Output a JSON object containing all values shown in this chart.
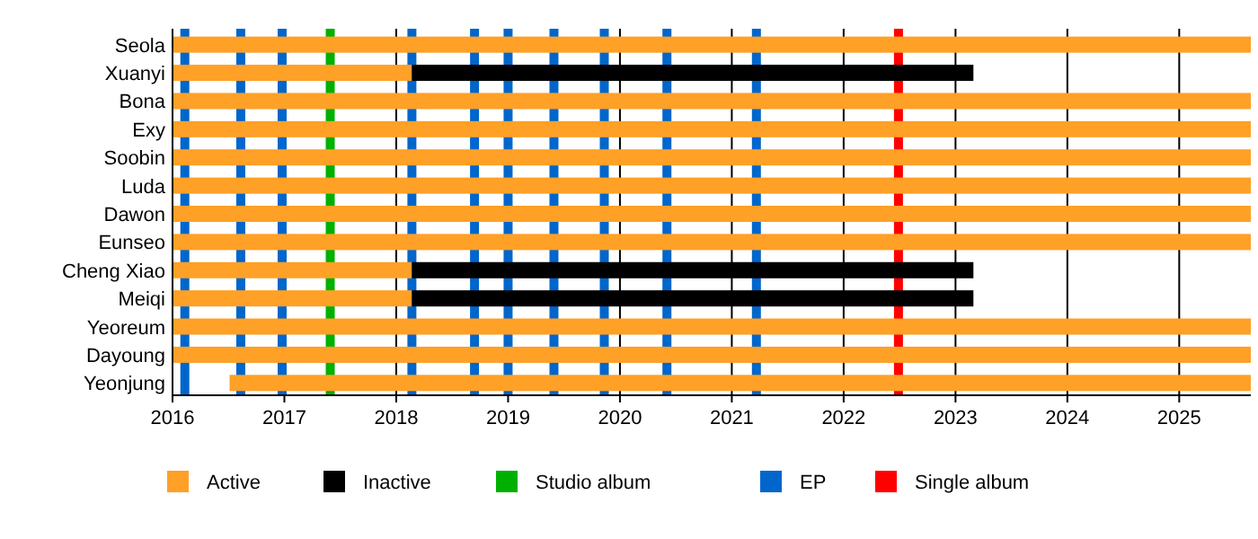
{
  "chart_data": {
    "type": "bar",
    "orientation": "horizontal",
    "categories": [
      "Seola",
      "Xuanyi",
      "Bona",
      "Exy",
      "Soobin",
      "Luda",
      "Dawon",
      "Eunseo",
      "Cheng Xiao",
      "Meiqi",
      "Yeoreum",
      "Dayoung",
      "Yeonjung"
    ],
    "series": [
      {
        "name": "Active",
        "color": "#ffa027",
        "base": [
          2016,
          2016,
          2016,
          2016,
          2016,
          2016,
          2016,
          2016,
          2016,
          2016,
          2016,
          2016,
          2016.51
        ],
        "values": [
          9.64,
          2.14,
          9.64,
          9.64,
          9.64,
          9.64,
          9.64,
          9.64,
          2.14,
          2.14,
          9.64,
          9.64,
          9.13
        ]
      },
      {
        "name": "Inactive",
        "color": "#000000",
        "base": [
          null,
          2018.14,
          null,
          null,
          null,
          null,
          null,
          null,
          2018.14,
          2018.14,
          null,
          null,
          null
        ],
        "values": [
          null,
          5.02,
          null,
          null,
          null,
          null,
          null,
          null,
          5.02,
          5.02,
          null,
          null,
          null
        ]
      }
    ],
    "xlim": [
      2016,
      2025.64
    ],
    "xticks": [
      2016,
      2017,
      2018,
      2019,
      2020,
      2021,
      2022,
      2023,
      2024,
      2025
    ],
    "grid": "x",
    "legend": "bottom",
    "ref_lines": [
      {
        "axis": "x",
        "value": 2017.41,
        "label": "Studio album",
        "color": "#00b000"
      },
      {
        "axis": "x",
        "value": 2016.11,
        "label": "EP",
        "color": "#0066cc"
      },
      {
        "axis": "x",
        "value": 2016.61,
        "label": null,
        "color": "#0066cc"
      },
      {
        "axis": "x",
        "value": 2016.98,
        "label": null,
        "color": "#0066cc"
      },
      {
        "axis": "x",
        "value": 2018.14,
        "label": null,
        "color": "#0066cc"
      },
      {
        "axis": "x",
        "value": 2018.7,
        "label": null,
        "color": "#0066cc"
      },
      {
        "axis": "x",
        "value": 2019.0,
        "label": null,
        "color": "#0066cc"
      },
      {
        "axis": "x",
        "value": 2019.41,
        "label": null,
        "color": "#0066cc"
      },
      {
        "axis": "x",
        "value": 2019.86,
        "label": null,
        "color": "#0066cc"
      },
      {
        "axis": "x",
        "value": 2020.42,
        "label": null,
        "color": "#0066cc"
      },
      {
        "axis": "x",
        "value": 2021.22,
        "label": null,
        "color": "#0066cc"
      },
      {
        "axis": "x",
        "value": 2022.49,
        "label": "Single album",
        "color": "#ff0000"
      }
    ]
  }
}
